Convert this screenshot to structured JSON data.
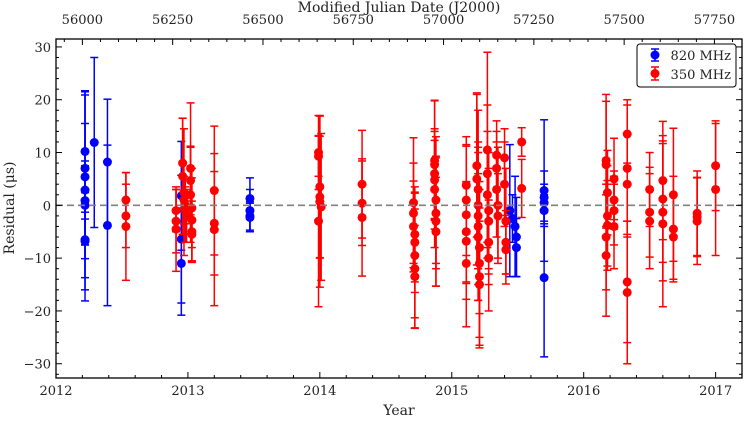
{
  "chart_data": {
    "type": "scatter",
    "title": "",
    "xlabel": "Year",
    "ylabel": "Residual (μs)",
    "top_xlabel": "Modified Julian Date (J2000)",
    "xlim": [
      2012.0,
      2017.2
    ],
    "ylim": [
      -32.7,
      31.5
    ],
    "x_ticks": [
      "2012",
      "2013",
      "2014",
      "2015",
      "2016",
      "2017"
    ],
    "y_ticks": [
      "−30",
      "−20",
      "−10",
      "0",
      "10",
      "20",
      "30"
    ],
    "top_ticks": [
      "56000",
      "56250",
      "56500",
      "56750",
      "57000",
      "57250",
      "57500",
      "57750"
    ],
    "reference_line": 0,
    "legend_placement": "top-right",
    "series": [
      {
        "name": "820 MHz",
        "color": "#0000ff",
        "points": [
          [
            2012.22,
            10.2,
            11.5
          ],
          [
            2012.22,
            7.0,
            14.5
          ],
          [
            2012.22,
            5.4,
            15.5
          ],
          [
            2012.22,
            2.9,
            5.5
          ],
          [
            2012.22,
            0.9,
            14.6
          ],
          [
            2012.22,
            0.0,
            7.5
          ],
          [
            2012.22,
            -6.5,
            11.6
          ],
          [
            2012.22,
            -6.8,
            9.2
          ],
          [
            2012.29,
            11.9,
            16.1
          ],
          [
            2012.39,
            8.2,
            11.9
          ],
          [
            2012.39,
            -3.8,
            15.2
          ],
          [
            2012.95,
            1.8,
            10.3
          ],
          [
            2012.95,
            -6.4,
            12.1
          ],
          [
            2012.95,
            -11.0,
            9.8
          ],
          [
            2013.47,
            1.3,
            3.9
          ],
          [
            2013.47,
            -1.0,
            4.0
          ],
          [
            2013.47,
            -2.0,
            2.7
          ],
          [
            2013.47,
            -2.3,
            2.7
          ],
          [
            2015.44,
            -1.0,
            12.5
          ],
          [
            2015.46,
            -2.5,
            4.5
          ],
          [
            2015.48,
            -4.0,
            9.5
          ],
          [
            2015.49,
            -6.0,
            7.5
          ],
          [
            2015.49,
            -8.0,
            5.5
          ],
          [
            2015.7,
            2.8,
            13.4
          ],
          [
            2015.7,
            1.5,
            5.0
          ],
          [
            2015.7,
            0.5,
            3.5
          ],
          [
            2015.7,
            -1.0,
            3.0
          ],
          [
            2015.7,
            -13.7,
            15.0
          ]
        ]
      },
      {
        "name": "350 MHz",
        "color": "#ff0000",
        "points": [
          [
            2012.53,
            1.0,
            5.2
          ],
          [
            2012.53,
            -2.0,
            6.0
          ],
          [
            2012.53,
            -4.0,
            10.2
          ],
          [
            2012.91,
            -1.0,
            4.0
          ],
          [
            2012.91,
            -3.0,
            6.0
          ],
          [
            2012.91,
            -4.5,
            8.0
          ],
          [
            2012.96,
            8.0,
            8.5
          ],
          [
            2012.96,
            5.5,
            11.0
          ],
          [
            2012.97,
            2.5,
            12.0
          ],
          [
            2012.97,
            1.0,
            4.5
          ],
          [
            2012.98,
            0.0,
            3.5
          ],
          [
            2012.98,
            -1.0,
            6.0
          ],
          [
            2012.99,
            -2.0,
            5.0
          ],
          [
            2013.02,
            7.0,
            12.4
          ],
          [
            2013.02,
            4.7,
            6.5
          ],
          [
            2013.02,
            2.0,
            9.0
          ],
          [
            2013.03,
            -0.5,
            7.5
          ],
          [
            2013.03,
            -2.8,
            8.0
          ],
          [
            2013.03,
            -5.0,
            5.8
          ],
          [
            2013.03,
            -5.5,
            5.0
          ],
          [
            2013.2,
            2.8,
            12.2
          ],
          [
            2013.2,
            -3.4,
            9.8
          ],
          [
            2013.2,
            -4.6,
            14.4
          ],
          [
            2013.99,
            10.0,
            7.0
          ],
          [
            2013.99,
            9.3,
            3.8
          ],
          [
            2014.0,
            3.5,
            13.5
          ],
          [
            2014.0,
            1.6,
            11.5
          ],
          [
            2014.0,
            0.7,
            16.2
          ],
          [
            2014.01,
            -0.3,
            13.9
          ],
          [
            2013.99,
            -3.0,
            16.2
          ],
          [
            2014.32,
            4.0,
            10.2
          ],
          [
            2014.32,
            0.4,
            8.0
          ],
          [
            2014.32,
            -2.3,
            11.1
          ],
          [
            2014.71,
            0.5,
            12.3
          ],
          [
            2014.71,
            -1.5,
            9.5
          ],
          [
            2014.71,
            -4.0,
            8.6
          ],
          [
            2014.72,
            -5.5,
            9.0
          ],
          [
            2014.72,
            -7.0,
            9.5
          ],
          [
            2014.72,
            -9.5,
            11.8
          ],
          [
            2014.72,
            -12.0,
            11.3
          ],
          [
            2014.72,
            -13.5,
            9.7
          ],
          [
            2014.87,
            8.5,
            11.3
          ],
          [
            2014.87,
            7.7,
            12.2
          ],
          [
            2014.87,
            6.0,
            8.5
          ],
          [
            2014.87,
            4.8,
            7.5
          ],
          [
            2014.87,
            3.0,
            11.0
          ],
          [
            2014.88,
            1.0,
            12.0
          ],
          [
            2014.88,
            -1.5,
            10.5
          ],
          [
            2014.88,
            -3.0,
            12.3
          ],
          [
            2014.88,
            -5.0,
            10.3
          ],
          [
            2015.11,
            3.8,
            9.2
          ],
          [
            2015.11,
            1.0,
            10.5
          ],
          [
            2015.11,
            -1.8,
            13.0
          ],
          [
            2015.11,
            -5.0,
            9.5
          ],
          [
            2015.11,
            -6.8,
            11.0
          ],
          [
            2015.11,
            -11.0,
            12.0
          ],
          [
            2015.19,
            7.5,
            13.5
          ],
          [
            2015.19,
            5.0,
            16.3
          ],
          [
            2015.2,
            3.0,
            15.0
          ],
          [
            2015.2,
            0.0,
            12.0
          ],
          [
            2015.2,
            -2.0,
            13.0
          ],
          [
            2015.2,
            -4.0,
            14.0
          ],
          [
            2015.2,
            -6.0,
            12.0
          ],
          [
            2015.21,
            -8.0,
            12.5
          ],
          [
            2015.21,
            -11.0,
            14.0
          ],
          [
            2015.21,
            -13.5,
            13.0
          ],
          [
            2015.21,
            -15.0,
            12.0
          ],
          [
            2015.27,
            10.5,
            18.5
          ],
          [
            2015.27,
            6.0,
            13.0
          ],
          [
            2015.27,
            2.0,
            12.0
          ],
          [
            2015.28,
            -1.0,
            11.0
          ],
          [
            2015.28,
            -3.0,
            10.0
          ],
          [
            2015.28,
            -7.0,
            8.0
          ],
          [
            2015.28,
            -10.0,
            10.0
          ],
          [
            2015.34,
            9.5,
            6.5
          ],
          [
            2015.34,
            7.0,
            7.0
          ],
          [
            2015.34,
            3.0,
            9.0
          ],
          [
            2015.35,
            0.0,
            11.0
          ],
          [
            2015.35,
            -2.0,
            8.0
          ],
          [
            2015.4,
            9.0,
            5.5
          ],
          [
            2015.4,
            4.0,
            8.0
          ],
          [
            2015.41,
            -3.0,
            10.0
          ],
          [
            2015.41,
            -7.0,
            6.0
          ],
          [
            2015.41,
            -8.4,
            6.5
          ],
          [
            2015.53,
            12.0,
            2.7
          ],
          [
            2015.53,
            3.2,
            5.5
          ],
          [
            2016.17,
            8.5,
            12.5
          ],
          [
            2016.17,
            7.7,
            12.0
          ],
          [
            2016.18,
            2.4,
            8.0
          ],
          [
            2016.18,
            -2.0,
            9.5
          ],
          [
            2016.18,
            -3.8,
            8.5
          ],
          [
            2016.17,
            -6.0,
            10.0
          ],
          [
            2016.17,
            -9.5,
            11.5
          ],
          [
            2016.23,
            5.0,
            7.7
          ],
          [
            2016.23,
            1.0,
            5.5
          ],
          [
            2016.23,
            -1.0,
            6.5
          ],
          [
            2016.23,
            -4.0,
            8.0
          ],
          [
            2016.33,
            13.5,
            5.5
          ],
          [
            2016.33,
            7.0,
            13.0
          ],
          [
            2016.33,
            4.0,
            9.5
          ],
          [
            2016.33,
            -14.5,
            11.5
          ],
          [
            2016.33,
            -16.5,
            13.5
          ],
          [
            2016.5,
            3.0,
            7.0
          ],
          [
            2016.5,
            -1.3,
            8.5
          ],
          [
            2016.5,
            -3.0,
            9.0
          ],
          [
            2016.6,
            4.7,
            11.2
          ],
          [
            2016.6,
            1.2,
            12.0
          ],
          [
            2016.6,
            -1.3,
            13.0
          ],
          [
            2016.6,
            -3.5,
            15.7
          ],
          [
            2016.68,
            2.0,
            12.6
          ],
          [
            2016.68,
            -4.5,
            10.0
          ],
          [
            2016.68,
            -6.0,
            8.0
          ],
          [
            2016.86,
            -1.5,
            8.0
          ],
          [
            2016.86,
            -2.2,
            7.5
          ],
          [
            2016.86,
            -3.0,
            8.2
          ],
          [
            2017.0,
            7.5,
            8.5
          ],
          [
            2017.0,
            3.0,
            12.5
          ]
        ]
      }
    ]
  }
}
